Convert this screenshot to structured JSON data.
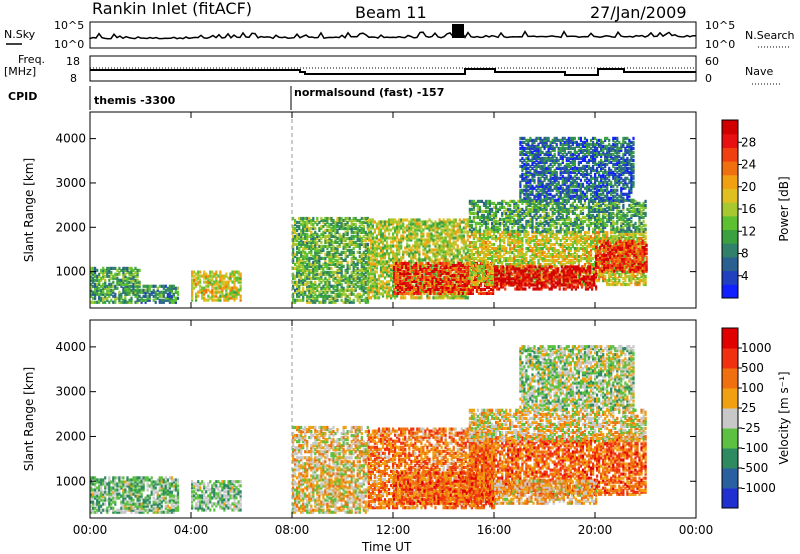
{
  "header": {
    "station": "Rankin Inlet (fitACF)",
    "beam": "Beam 11",
    "date": "27/Jan/2009"
  },
  "strips": {
    "nsky_label": "N.Sky",
    "nsearch_label": "N.Search",
    "nsky_ticks": [
      "10^5",
      "10^0"
    ],
    "nsearch_ticks": [
      "10^5",
      "10^0"
    ],
    "freq_label": "Freq.",
    "freq_unit": "[MHz]",
    "freq_ticks": [
      "18",
      "8"
    ],
    "nave_label": "Nave",
    "nave_ticks": [
      "60",
      "0"
    ],
    "cpid_label": "CPID",
    "cpid_modes": [
      {
        "label": "themis -3300",
        "start": "00:00"
      },
      {
        "label": "normalsound (fast) -157",
        "start": "08:00"
      }
    ]
  },
  "chart_data": [
    {
      "type": "heatmap",
      "name": "power",
      "ylabel": "Slant Range [km]",
      "xlabel": "",
      "ylim": [
        180,
        4600
      ],
      "yticks": [
        1000,
        2000,
        3000,
        4000
      ],
      "xticks": [
        "00:00",
        "04:00",
        "08:00",
        "12:00",
        "16:00",
        "20:00",
        "00:00"
      ],
      "colorbar": {
        "label": "Power [dB]",
        "ticks": [
          "4",
          "8",
          "12",
          "16",
          "20",
          "24",
          "28"
        ],
        "colors": [
          "#1020ff",
          "#2040c0",
          "#2a6090",
          "#30806a",
          "#3aa040",
          "#5cc030",
          "#a8c830",
          "#e0c020",
          "#f0a010",
          "#f07010",
          "#f04010",
          "#e81010",
          "#d00000"
        ]
      },
      "regions": [
        {
          "t0": 0.0,
          "t1": 2.0,
          "r0": 300,
          "r1": 1100,
          "level": 0.35
        },
        {
          "t0": 2.0,
          "t1": 3.5,
          "r0": 300,
          "r1": 700,
          "level": 0.3
        },
        {
          "t0": 4.0,
          "t1": 6.0,
          "r0": 350,
          "r1": 1000,
          "level": 0.55
        },
        {
          "t0": 8.0,
          "t1": 11.0,
          "r0": 300,
          "r1": 2200,
          "level": 0.4
        },
        {
          "t0": 11.0,
          "t1": 15.0,
          "r0": 400,
          "r1": 2200,
          "level": 0.5
        },
        {
          "t0": 12.0,
          "t1": 16.0,
          "r0": 500,
          "r1": 1200,
          "level": 0.85
        },
        {
          "t0": 15.0,
          "t1": 22.0,
          "r0": 700,
          "r1": 1900,
          "level": 0.55
        },
        {
          "t0": 16.0,
          "t1": 20.0,
          "r0": 600,
          "r1": 1100,
          "level": 0.95
        },
        {
          "t0": 20.0,
          "t1": 22.0,
          "r0": 1000,
          "r1": 1700,
          "level": 0.85
        },
        {
          "t0": 15.0,
          "t1": 22.0,
          "r0": 1900,
          "r1": 2600,
          "level": 0.35
        },
        {
          "t0": 17.0,
          "t1": 21.5,
          "r0": 2600,
          "r1": 4000,
          "level": 0.2
        }
      ]
    },
    {
      "type": "heatmap",
      "name": "velocity",
      "ylabel": "Slant Range [km]",
      "xlabel": "Time UT",
      "ylim": [
        180,
        4600
      ],
      "yticks": [
        1000,
        2000,
        3000,
        4000
      ],
      "xticks": [
        "00:00",
        "04:00",
        "08:00",
        "12:00",
        "16:00",
        "20:00",
        "00:00"
      ],
      "colorbar": {
        "label": "Velocity [m s⁻¹]",
        "ticks": [
          "1000",
          "500",
          "100",
          "25",
          "-25",
          "-100",
          "-500",
          "-1000"
        ],
        "colors": [
          "#2030d0",
          "#2a60a0",
          "#2e8a60",
          "#5cc040",
          "#c8c8c8",
          "#f0a010",
          "#f07010",
          "#f03010",
          "#e00000"
        ]
      },
      "regions": [
        {
          "t0": 0.0,
          "t1": 3.5,
          "r0": 300,
          "r1": 1100,
          "level": 0.4
        },
        {
          "t0": 4.0,
          "t1": 6.0,
          "r0": 350,
          "r1": 1000,
          "level": 0.4
        },
        {
          "t0": 8.0,
          "t1": 11.0,
          "r0": 300,
          "r1": 2200,
          "level": 0.55
        },
        {
          "t0": 11.0,
          "t1": 16.0,
          "r0": 400,
          "r1": 2200,
          "level": 0.7
        },
        {
          "t0": 12.0,
          "t1": 16.0,
          "r0": 500,
          "r1": 1200,
          "level": 0.75
        },
        {
          "t0": 15.0,
          "t1": 22.0,
          "r0": 700,
          "r1": 2000,
          "level": 0.75
        },
        {
          "t0": 16.0,
          "t1": 20.0,
          "r0": 500,
          "r1": 1000,
          "level": 0.6
        },
        {
          "t0": 15.0,
          "t1": 22.0,
          "r0": 1900,
          "r1": 2600,
          "level": 0.55
        },
        {
          "t0": 17.0,
          "t1": 21.5,
          "r0": 2600,
          "r1": 4000,
          "level": 0.45
        }
      ]
    }
  ]
}
